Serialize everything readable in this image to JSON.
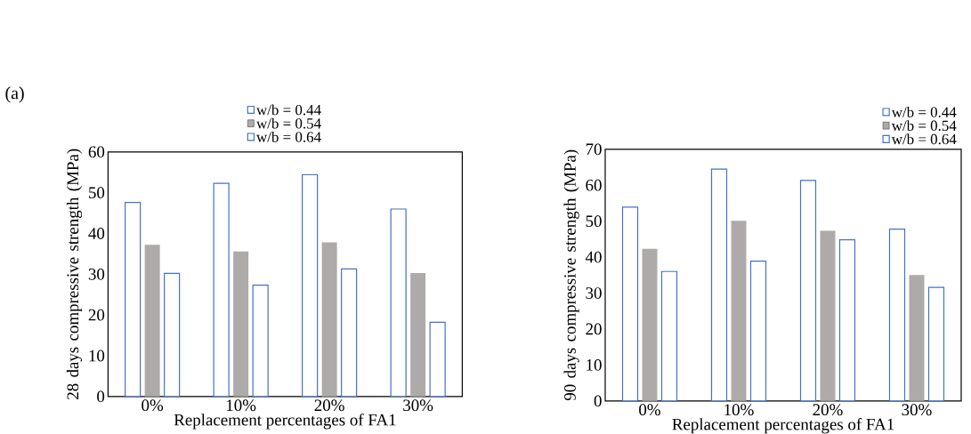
{
  "chart_data": [
    {
      "type": "bar",
      "xlabel": "Replacement percentages of FA1",
      "ylabel": "28 days compressive strength (MPa)",
      "annotations": [
        "(a)"
      ],
      "categories": [
        "0%",
        "10%",
        "20%",
        "30%"
      ],
      "series": [
        {
          "name": "w/b = 0.44",
          "color": "#4472c4",
          "values": [
            47.6,
            52.3,
            54.4,
            46.0
          ]
        },
        {
          "name": "w/b = 0.54",
          "color": "#aeaaaa",
          "values": [
            37.2,
            35.6,
            37.8,
            30.3
          ]
        },
        {
          "name": "w/b = 0.64",
          "color": "#4472c4",
          "values": [
            30.2,
            27.3,
            31.3,
            18.2
          ]
        }
      ],
      "ylim": [
        0,
        60
      ],
      "yticks": [
        0,
        10,
        20,
        30,
        40,
        50,
        60
      ],
      "grid": false,
      "legend": "top"
    },
    {
      "type": "bar",
      "xlabel": "Replacement percentages of FA1",
      "ylabel": "90 days compressive strength (MPa)",
      "categories": [
        "0%",
        "10%",
        "20%",
        "30%"
      ],
      "series": [
        {
          "name": "w/b = 0.44",
          "color": "#4472c4",
          "values": [
            53.9,
            64.5,
            61.3,
            47.8
          ]
        },
        {
          "name": "w/b = 0.54",
          "color": "#aeaaaa",
          "values": [
            42.3,
            50.1,
            47.3,
            35.0
          ]
        },
        {
          "name": "w/b = 0.64",
          "color": "#4472c4",
          "values": [
            36.0,
            38.9,
            44.8,
            31.6
          ]
        }
      ],
      "ylim": [
        0,
        70
      ],
      "yticks": [
        0,
        10,
        20,
        30,
        40,
        50,
        60,
        70
      ],
      "grid": false,
      "legend": "top right"
    }
  ]
}
